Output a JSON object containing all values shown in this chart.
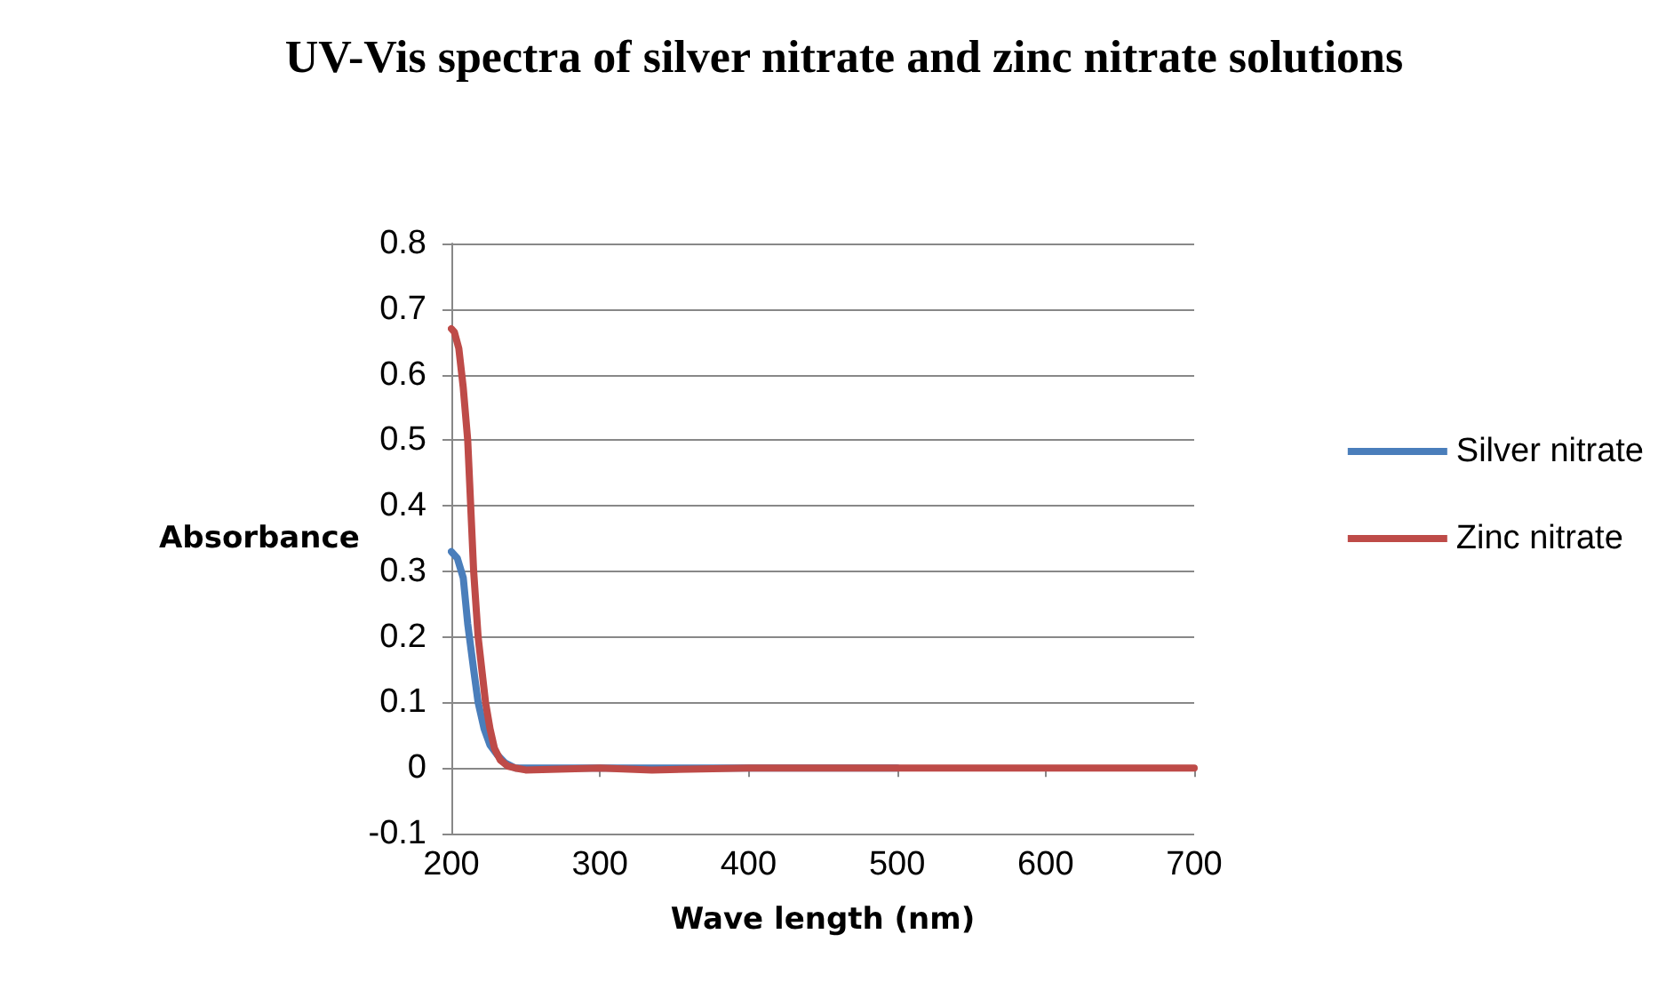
{
  "chart_data": {
    "type": "line",
    "title": "UV-Vis spectra of silver nitrate and zinc nitrate solutions",
    "xlabel": "Wave length (nm)",
    "ylabel": "Absorbance",
    "xlim": [
      200,
      700
    ],
    "xticks": [
      200,
      300,
      400,
      500,
      600,
      700
    ],
    "ylim": [
      -0.1,
      0.8
    ],
    "yticks": [
      -0.1,
      0,
      0.1,
      0.2,
      0.3,
      0.4,
      0.5,
      0.6,
      0.7,
      0.8
    ],
    "grid": "y",
    "legend": "right",
    "marker": "none",
    "line_style": "solid",
    "series": [
      {
        "name": "Silver nitrate",
        "color": "#4a7ebb",
        "x": [
          200,
          204,
          208,
          211,
          215,
          218,
          222,
          226,
          231,
          236,
          243,
          250,
          300,
          400,
          500
        ],
        "values": [
          0.33,
          0.32,
          0.29,
          0.22,
          0.15,
          0.1,
          0.06,
          0.035,
          0.02,
          0.008,
          0,
          0,
          0,
          0,
          0
        ]
      },
      {
        "name": "Zinc nitrate",
        "color": "#be4b48",
        "x": [
          200,
          202,
          205,
          208,
          211,
          215,
          218,
          223,
          226,
          229,
          233,
          238,
          243,
          250,
          300,
          335,
          400,
          500,
          600,
          700
        ],
        "values": [
          0.67,
          0.665,
          0.64,
          0.58,
          0.5,
          0.3,
          0.2,
          0.1,
          0.06,
          0.03,
          0.012,
          0.003,
          0,
          -0.003,
          0,
          -0.003,
          0,
          0,
          0,
          0
        ]
      }
    ]
  }
}
